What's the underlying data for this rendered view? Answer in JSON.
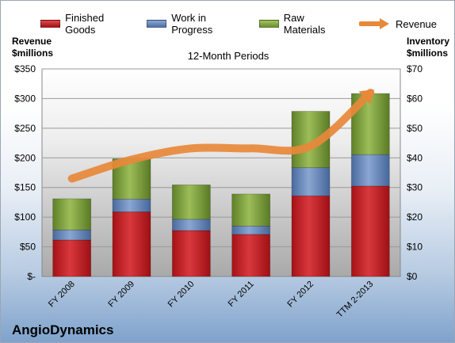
{
  "chart_data": {
    "type": "bar",
    "title": "12-Month Periods",
    "categories": [
      "FY 2008",
      "FY 2009",
      "FY 2010",
      "FY 2011",
      "FY 2012",
      "TTM 2-2013"
    ],
    "series": [
      {
        "name": "Finished Goods",
        "axis": "right",
        "color": "#c0181d",
        "values": [
          12.3,
          21.8,
          15.5,
          14.2,
          27.2,
          30.5
        ]
      },
      {
        "name": "Work in Progress",
        "axis": "right",
        "color": "#5b7fb5",
        "values": [
          3.4,
          4.3,
          3.8,
          2.8,
          9.5,
          10.6
        ]
      },
      {
        "name": "Raw Materials",
        "axis": "right",
        "color": "#7a9e3a",
        "values": [
          10.5,
          13.6,
          11.6,
          10.8,
          19.0,
          20.6
        ]
      },
      {
        "name": "Revenue",
        "axis": "left",
        "type": "line",
        "color": "#e8883a",
        "values": [
          165,
          197,
          216,
          216,
          220,
          310
        ]
      }
    ],
    "left_axis": {
      "label": "Revenue\n$millions",
      "ylim": [
        0,
        350
      ],
      "ticks": [
        "$-",
        "$50",
        "$100",
        "$150",
        "$200",
        "$250",
        "$300",
        "$350"
      ]
    },
    "right_axis": {
      "label": "Inventory\n$millions",
      "ylim": [
        0,
        70
      ],
      "ticks": [
        "$0",
        "$10",
        "$20",
        "$30",
        "$40",
        "$50",
        "$60",
        "$70"
      ]
    },
    "legend_position": "top",
    "grid": true
  },
  "company": "AngioDynamics"
}
